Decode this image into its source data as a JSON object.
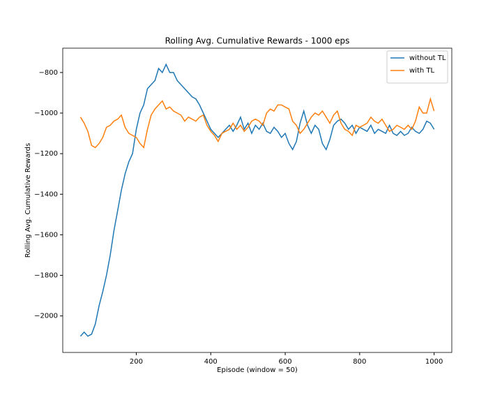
{
  "chart_data": {
    "type": "line",
    "title": "Rolling Avg. Cumulative Rewards - 1000 eps",
    "x_label": "Episode (window = 50)",
    "y_label": "Rolling Avg. Cumulative Rewards",
    "x": [
      50,
      60,
      70,
      80,
      90,
      100,
      110,
      120,
      130,
      140,
      150,
      160,
      170,
      180,
      190,
      200,
      210,
      220,
      230,
      240,
      250,
      260,
      270,
      280,
      290,
      300,
      310,
      320,
      330,
      340,
      350,
      360,
      370,
      380,
      390,
      400,
      410,
      420,
      430,
      440,
      450,
      460,
      470,
      480,
      490,
      500,
      510,
      520,
      530,
      540,
      550,
      560,
      570,
      580,
      590,
      600,
      610,
      620,
      630,
      640,
      650,
      660,
      670,
      680,
      690,
      700,
      710,
      720,
      730,
      740,
      750,
      760,
      770,
      780,
      790,
      800,
      810,
      820,
      830,
      840,
      850,
      860,
      870,
      880,
      890,
      900,
      910,
      920,
      930,
      940,
      950,
      960,
      970,
      980,
      990,
      1000
    ],
    "series": [
      {
        "name": "without TL",
        "color": "#1f77b4",
        "values": [
          -2100,
          -2080,
          -2100,
          -2090,
          -2040,
          -1950,
          -1880,
          -1800,
          -1700,
          -1580,
          -1480,
          -1380,
          -1300,
          -1240,
          -1200,
          -1080,
          -1000,
          -960,
          -880,
          -860,
          -840,
          -780,
          -800,
          -760,
          -800,
          -800,
          -840,
          -860,
          -880,
          -900,
          -920,
          -930,
          -960,
          -1000,
          -1040,
          -1080,
          -1100,
          -1120,
          -1100,
          -1080,
          -1060,
          -1090,
          -1060,
          -1020,
          -1080,
          -1050,
          -1100,
          -1060,
          -1080,
          -1050,
          -1090,
          -1100,
          -1070,
          -1090,
          -1120,
          -1100,
          -1150,
          -1180,
          -1140,
          -1050,
          -990,
          -1060,
          -1100,
          -1060,
          -1080,
          -1150,
          -1180,
          -1130,
          -1060,
          -1040,
          -1030,
          -1050,
          -1080,
          -1060,
          -1100,
          -1070,
          -1080,
          -1090,
          -1060,
          -1100,
          -1080,
          -1090,
          -1100,
          -1060,
          -1100,
          -1110,
          -1090,
          -1110,
          -1100,
          -1070,
          -1090,
          -1100,
          -1080,
          -1040,
          -1050,
          -1080
        ]
      },
      {
        "name": "with TL",
        "color": "#ff7f0e",
        "values": [
          -1020,
          -1050,
          -1090,
          -1160,
          -1170,
          -1150,
          -1120,
          -1070,
          -1060,
          -1040,
          -1030,
          -1010,
          -1070,
          -1100,
          -1110,
          -1120,
          -1150,
          -1170,
          -1080,
          -1010,
          -980,
          -960,
          -940,
          -980,
          -970,
          -990,
          -1000,
          -1010,
          -1040,
          -1020,
          -1030,
          -1040,
          -1020,
          -1010,
          -1060,
          -1090,
          -1110,
          -1140,
          -1100,
          -1090,
          -1080,
          -1050,
          -1080,
          -1060,
          -1090,
          -1070,
          -1040,
          -1030,
          -1040,
          -1060,
          -1000,
          -980,
          -990,
          -960,
          -960,
          -970,
          -980,
          -1040,
          -1060,
          -1100,
          -1080,
          -1050,
          -1020,
          -1000,
          -1010,
          -990,
          -1020,
          -1050,
          -1010,
          -990,
          -1050,
          -1080,
          -1090,
          -1110,
          -1060,
          -1070,
          -1060,
          -1050,
          -1020,
          -1040,
          -1050,
          -1030,
          -1060,
          -1090,
          -1080,
          -1060,
          -1070,
          -1080,
          -1060,
          -1080,
          -1040,
          -970,
          -1000,
          -1000,
          -930,
          -990
        ]
      }
    ],
    "xlim": [
      2.5,
      1047.5
    ],
    "ylim": [
      -2180,
      -680
    ],
    "xticks": [
      200,
      400,
      600,
      800,
      1000
    ],
    "yticks": [
      {
        "value": -2000,
        "label": "−2000"
      },
      {
        "value": -1800,
        "label": "−1800"
      },
      {
        "value": -1600,
        "label": "−1600"
      },
      {
        "value": -1400,
        "label": "−1400"
      },
      {
        "value": -1200,
        "label": "−1200"
      },
      {
        "value": -1000,
        "label": "−1000"
      },
      {
        "value": -800,
        "label": "−800"
      }
    ],
    "legend": "upper right"
  }
}
